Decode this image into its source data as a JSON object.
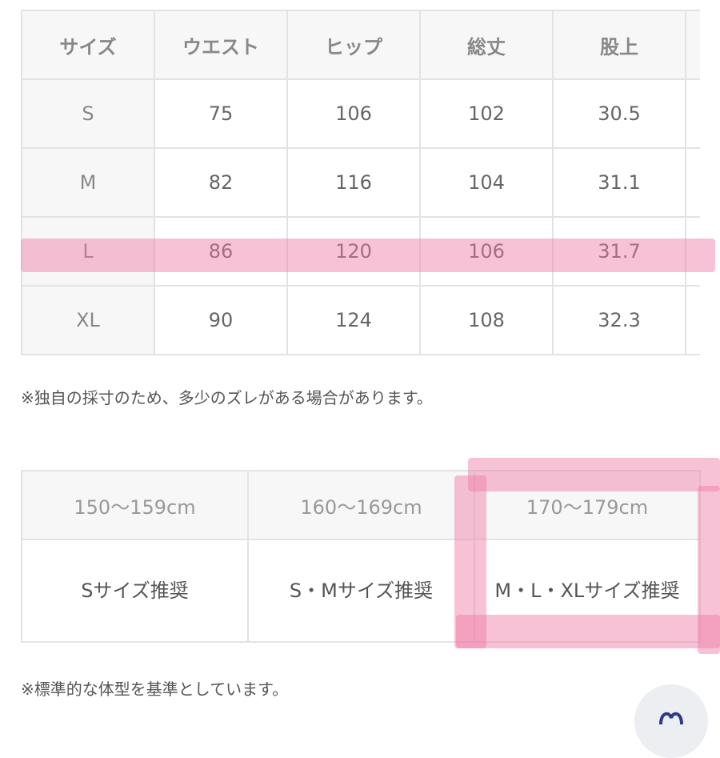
{
  "size_table": {
    "headers": [
      "サイズ",
      "ウエスト",
      "ヒップ",
      "総丈",
      "股上"
    ],
    "rows": [
      [
        "S",
        "75",
        "106",
        "102",
        "30.5"
      ],
      [
        "M",
        "82",
        "116",
        "104",
        "31.1"
      ],
      [
        "L",
        "86",
        "120",
        "106",
        "31.7"
      ],
      [
        "XL",
        "90",
        "124",
        "108",
        "32.3"
      ]
    ],
    "highlighted_row": "L"
  },
  "note1": "※独自の採寸のため、多少のズレがある場合があります。",
  "height_table": {
    "headers": [
      "150〜159cm",
      "160〜169cm",
      "170〜179cm"
    ],
    "values": [
      "Sサイズ推奨",
      "S・Mサイズ推奨",
      "M・L・XLサイズ推奨"
    ],
    "highlighted_column": "170〜179cm"
  },
  "note2": "※標準的な体型を基準としています。",
  "colors": {
    "highlight": "#f078a5",
    "border": "#e3e3e3",
    "header_bg": "#f7f7f7",
    "icon": "#2b3a8c"
  },
  "fab_icon": "heart-icon"
}
